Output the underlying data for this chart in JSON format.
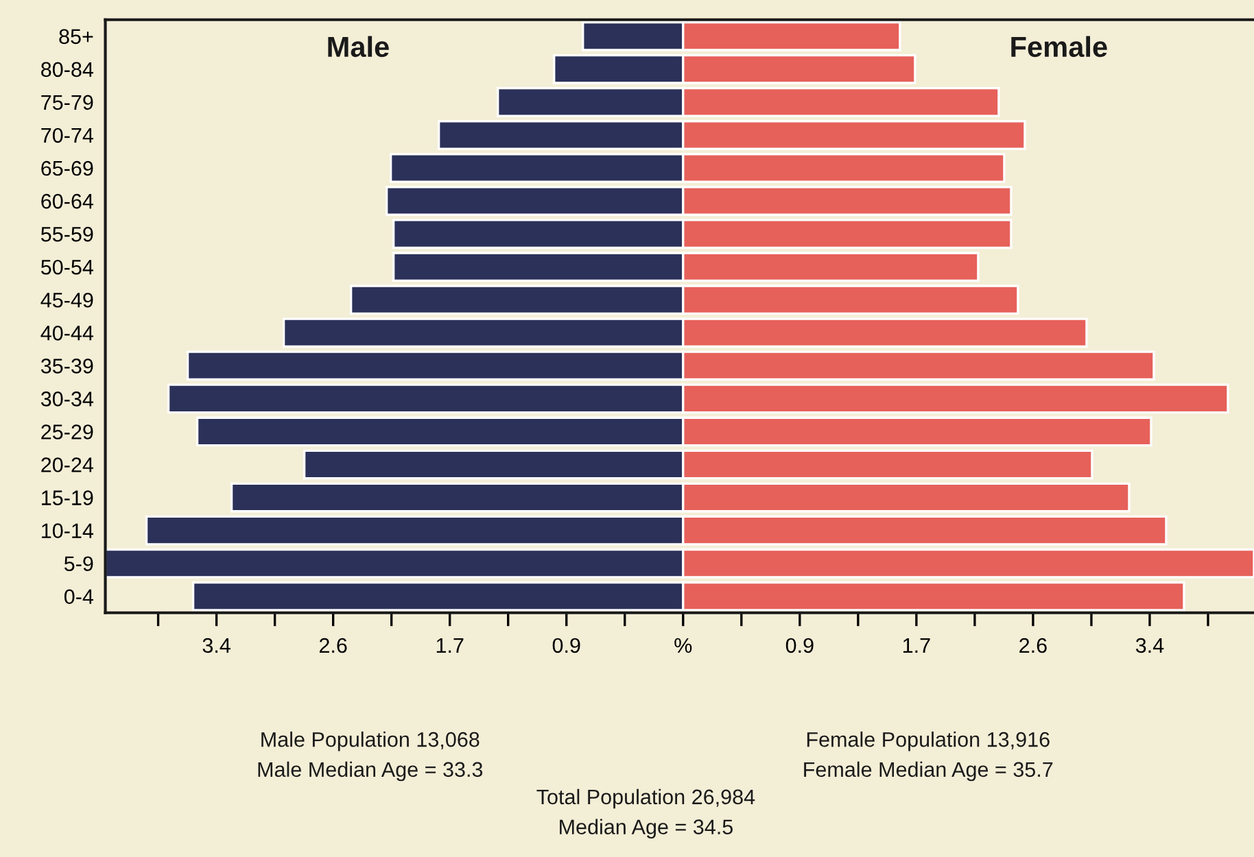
{
  "chart_data": {
    "type": "bar",
    "orientation": "horizontal",
    "stacked": true,
    "categories": [
      "85+",
      "80-84",
      "75-79",
      "70-74",
      "65-69",
      "60-64",
      "55-59",
      "50-54",
      "45-49",
      "40-44",
      "35-39",
      "30-34",
      "25-29",
      "20-24",
      "15-19",
      "10-14",
      "5-9",
      "0-4"
    ],
    "series": [
      {
        "name": "Male",
        "color": "#2b3158",
        "values": [
          -0.73,
          -0.94,
          -1.35,
          -1.78,
          -2.13,
          -2.16,
          -2.11,
          -2.11,
          -2.42,
          -2.91,
          -3.61,
          -3.75,
          -3.54,
          -2.76,
          -3.29,
          -3.91,
          -4.21,
          -3.57
        ]
      },
      {
        "name": "Female",
        "color": "#e6615a",
        "values": [
          1.58,
          1.69,
          2.3,
          2.49,
          2.34,
          2.39,
          2.39,
          2.15,
          2.44,
          2.94,
          3.43,
          3.97,
          3.41,
          2.98,
          3.25,
          3.52,
          4.16,
          3.65
        ]
      }
    ],
    "xlim": [
      -4.21,
      4.16
    ],
    "xticks": [
      {
        "value": -3.825,
        "label": null
      },
      {
        "value": -3.4,
        "label": "3.4"
      },
      {
        "value": -2.975,
        "label": null
      },
      {
        "value": -2.55,
        "label": "2.6"
      },
      {
        "value": -2.125,
        "label": null
      },
      {
        "value": -1.7,
        "label": "1.7"
      },
      {
        "value": -1.275,
        "label": null
      },
      {
        "value": -0.85,
        "label": "0.9"
      },
      {
        "value": -0.425,
        "label": null
      },
      {
        "value": 0,
        "label": "%"
      },
      {
        "value": 0.425,
        "label": null
      },
      {
        "value": 0.85,
        "label": "0.9"
      },
      {
        "value": 1.275,
        "label": null
      },
      {
        "value": 1.7,
        "label": "1.7"
      },
      {
        "value": 2.125,
        "label": null
      },
      {
        "value": 2.55,
        "label": "2.6"
      },
      {
        "value": 2.975,
        "label": null
      },
      {
        "value": 3.4,
        "label": "3.4"
      },
      {
        "value": 3.825,
        "label": null
      }
    ],
    "grid": false,
    "legend": false,
    "annotations": [
      "Male Population 13,068",
      "Male Median Age = 33.3",
      "Female Population 13,916",
      "Female Median Age = 35.7",
      "Total Population 26,984",
      "Median Age = 34.5"
    ]
  }
}
